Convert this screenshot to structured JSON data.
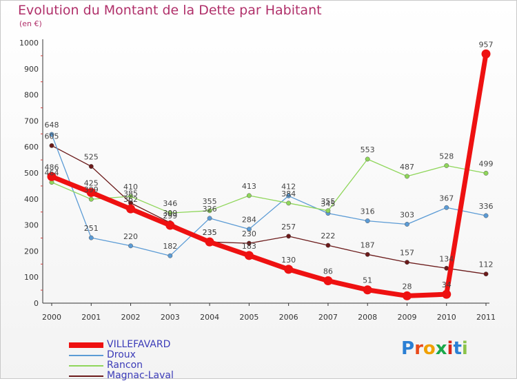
{
  "title": "Evolution du Montant de la Dette par Habitant",
  "unit": "(en €)",
  "logo": "Proxiti",
  "chart_data": {
    "type": "line",
    "title": "Evolution du Montant de la Dette par Habitant",
    "ylabel": "(en €)",
    "x": [
      "2000",
      "2001",
      "2002",
      "2003",
      "2004",
      "2005",
      "2006",
      "2007",
      "2008",
      "2009",
      "2010",
      "2011"
    ],
    "ylim": [
      0,
      1000
    ],
    "yticks": [
      "0",
      "100",
      "200",
      "300",
      "400",
      "500",
      "600",
      "700",
      "800",
      "900",
      "1000"
    ],
    "grid": false,
    "legend_position": "bottom-left",
    "series": [
      {
        "name": "VILLEFAVARD",
        "color": "#ee1111",
        "values": [
          486,
          425,
          362,
          299,
          235,
          183,
          130,
          86,
          51,
          28,
          34,
          957
        ],
        "labels": [
          "486",
          "425",
          "362",
          "299",
          "235",
          "183",
          "130",
          "86",
          "51",
          "28",
          "34",
          "957"
        ]
      },
      {
        "name": "Droux",
        "color": "#5b9bd5",
        "values": [
          648,
          251,
          220,
          182,
          326,
          284,
          412,
          345,
          316,
          303,
          367,
          336
        ],
        "labels": [
          "648",
          "251",
          "220",
          "182",
          "326",
          "284",
          "412",
          "345",
          "316",
          "303",
          "367",
          "336"
        ]
      },
      {
        "name": "Rancon",
        "color": "#8fd65a",
        "values": [
          464,
          399,
          410,
          346,
          355,
          413,
          384,
          355,
          553,
          487,
          528,
          499
        ],
        "labels": [
          "464",
          "399",
          "410",
          "346",
          "355",
          "413",
          "384",
          "355",
          "553",
          "487",
          "528",
          "499"
        ]
      },
      {
        "name": "Magnac-Laval",
        "color": "#6b1a1a",
        "values": [
          605,
          525,
          385,
          309,
          235,
          230,
          257,
          222,
          187,
          157,
          134,
          112
        ],
        "labels": [
          "605",
          "525",
          "385",
          "309",
          "235",
          "230",
          "257",
          "222",
          "187",
          "157",
          "134",
          "112"
        ]
      }
    ]
  }
}
